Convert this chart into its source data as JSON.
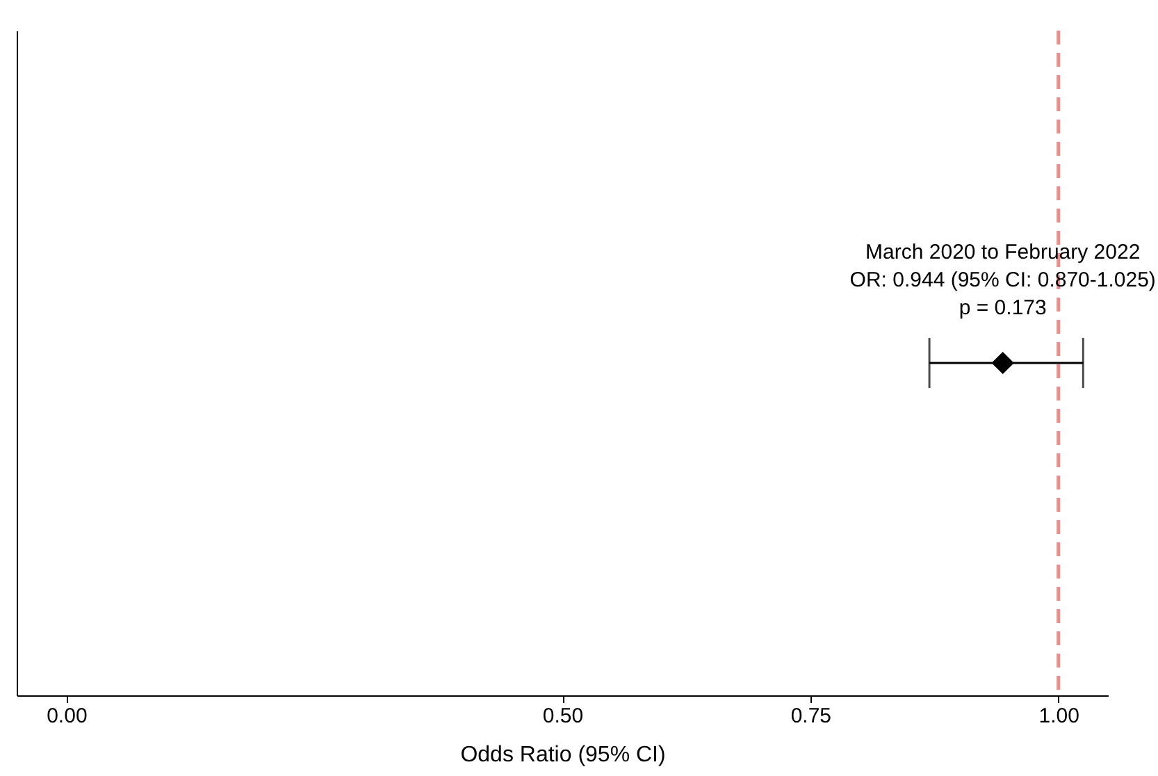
{
  "chart_data": {
    "type": "scatter",
    "orientation": "horizontal",
    "categories": [
      null
    ],
    "values": [
      0.944
    ],
    "errors": [
      [
        0.87,
        1.025
      ]
    ],
    "color": "#000000",
    "marker": "diamond",
    "xlim": [
      -0.05,
      1.05
    ],
    "xticks": [
      {
        "value": 0,
        "label": "0.00"
      },
      {
        "value": 0.5,
        "label": "0.50"
      },
      {
        "value": 0.75,
        "label": "0.75"
      },
      {
        "value": 1,
        "label": "1.00"
      }
    ],
    "xlabel": "Odds Ratio (95% CI)",
    "tick_labels": "x",
    "grid": false,
    "ref_lines": [
      {
        "axis": "x",
        "value": 1,
        "color": "#e8908f",
        "line_style": "dashed"
      }
    ],
    "annotations": [
      "March 2020 to February 2022",
      "OR: 0.944 (95% CI: 0.870-1.025)",
      "p = 0.173"
    ]
  }
}
